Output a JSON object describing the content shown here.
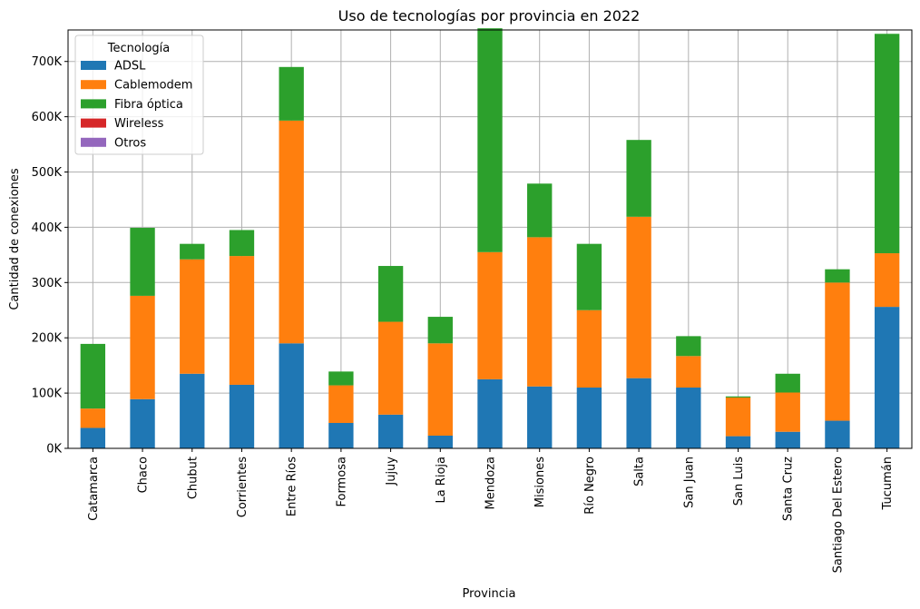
{
  "chart_data": {
    "type": "bar",
    "stacked": true,
    "title": "Uso de tecnologías por provincia en 2022",
    "xlabel": "Provincia",
    "ylabel": "Cantidad de conexiones",
    "ylim": [
      0,
      757000
    ],
    "yticks": [
      0,
      100000,
      200000,
      300000,
      400000,
      500000,
      600000,
      700000
    ],
    "ytick_labels": [
      "0K",
      "100K",
      "200K",
      "300K",
      "400K",
      "500K",
      "600K",
      "700K"
    ],
    "grid": true,
    "legend_title": "Tecnología",
    "legend_position": "top-left",
    "categories": [
      "Catamarca",
      "Chaco",
      "Chubut",
      "Corrientes",
      "Entre Ríos",
      "Formosa",
      "Jujuy",
      "La Rioja",
      "Mendoza",
      "Misiones",
      "Río Negro",
      "Salta",
      "San Juan",
      "San Luis",
      "Santa Cruz",
      "Santiago Del Estero",
      "Tucumán"
    ],
    "series": [
      {
        "name": "ADSL",
        "color": "#1f77b4",
        "values": [
          37000,
          89000,
          135000,
          115000,
          190000,
          46000,
          61000,
          23000,
          125000,
          112000,
          110000,
          127000,
          110000,
          22000,
          30000,
          50000,
          256000
        ]
      },
      {
        "name": "Cablemodem",
        "color": "#ff7f0e",
        "values": [
          35000,
          187000,
          207000,
          233000,
          403000,
          68000,
          168000,
          167000,
          230000,
          270000,
          140000,
          292000,
          57000,
          70000,
          71000,
          250000,
          97000
        ]
      },
      {
        "name": "Fibra óptica",
        "color": "#2ca02c",
        "values": [
          117000,
          123000,
          28000,
          47000,
          97000,
          25000,
          101000,
          48000,
          405000,
          97000,
          120000,
          139000,
          36000,
          2000,
          34000,
          24000,
          397000
        ]
      },
      {
        "name": "Wireless",
        "color": "#d62728",
        "values": [
          0,
          0,
          0,
          0,
          0,
          0,
          0,
          0,
          0,
          0,
          0,
          0,
          0,
          0,
          0,
          0,
          0
        ]
      },
      {
        "name": "Otros",
        "color": "#9467bd",
        "values": [
          0,
          0,
          0,
          0,
          0,
          0,
          0,
          0,
          0,
          0,
          0,
          0,
          0,
          0,
          0,
          0,
          0
        ]
      }
    ]
  }
}
